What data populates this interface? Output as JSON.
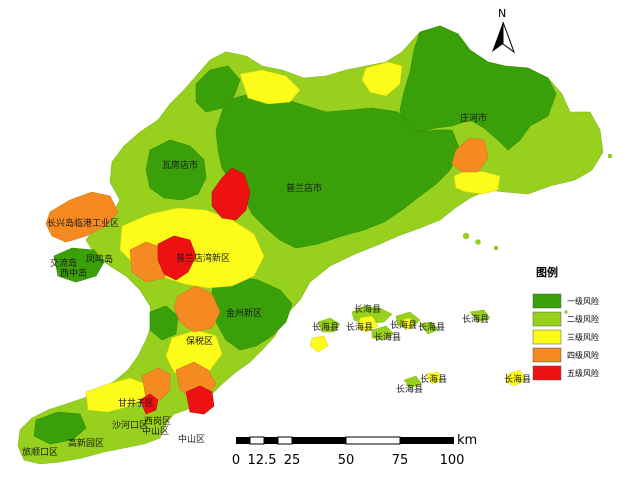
{
  "north_arrow": {
    "label": "N"
  },
  "map_labels": {
    "zhuanghe": "庄河市",
    "wafangdian": "瓦房店市",
    "pulandian": "普兰店市",
    "changxing": "长兴岛临港工业区",
    "jiaoliu": "交流岛",
    "fengming": "凤鸣岛",
    "xiwaida": "西中岛",
    "pulan_new": "普兰店湾新区",
    "jinzhou": "金州新区",
    "baoshui": "保税区",
    "ganjingzi": "甘井子区",
    "lvshun": "旅顺口区",
    "shahekou": "沙河口区",
    "xigang": "西岗区",
    "zhongshan": "中山区",
    "gaoxin": "高新园区",
    "changhai": "长海县"
  },
  "legend": {
    "title": "图例",
    "items": [
      {
        "label": "一级风险",
        "color": "#3aa00a"
      },
      {
        "label": "二级风险",
        "color": "#98d11d"
      },
      {
        "label": "三级风险",
        "color": "#fdfb19"
      },
      {
        "label": "四级风险",
        "color": "#f58a22"
      },
      {
        "label": "五级风险",
        "color": "#ee1111"
      }
    ]
  },
  "scale_bar": {
    "unit": "km",
    "ticks": [
      "0",
      "12.5",
      "25",
      "50",
      "75",
      "100"
    ]
  }
}
